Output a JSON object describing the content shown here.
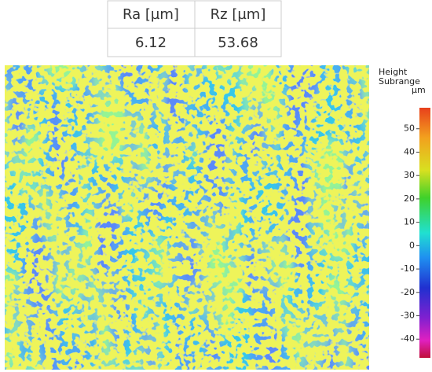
{
  "table": {
    "header": [
      "Ra [µm]",
      "Rz [µm]"
    ],
    "rows": [
      [
        "6.12",
        "53.68"
      ]
    ]
  },
  "colorbar": {
    "title": [
      "Height",
      "Subrange"
    ],
    "unit": "µm",
    "lim": [
      -48,
      59
    ],
    "ticks": [
      50,
      40,
      30,
      20,
      10,
      0,
      -10,
      -20,
      -30,
      -40
    ]
  }
}
